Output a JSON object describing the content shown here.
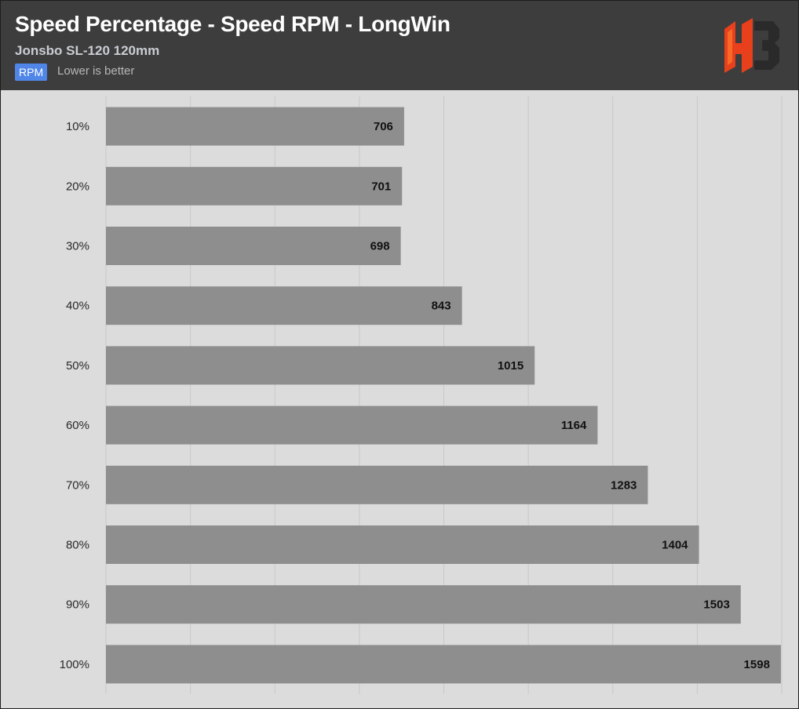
{
  "header": {
    "title": "Speed Percentage - Speed RPM - LongWin",
    "subtitle": "Jonsbo SL-120 120mm",
    "unit_badge": "RPM",
    "note": "Lower is better",
    "logo_icon": "hb-logo-icon"
  },
  "colors": {
    "header_bg": "#3d3d3d",
    "plot_bg": "#dcdcdc",
    "bar": "#8e8e8e",
    "badge": "#4f86e8",
    "grid": "#c8c8c8",
    "logo": "#e8401c"
  },
  "chart_data": {
    "type": "bar",
    "orientation": "horizontal",
    "categories": [
      "10%",
      "20%",
      "30%",
      "40%",
      "50%",
      "60%",
      "70%",
      "80%",
      "90%",
      "100%"
    ],
    "series": [
      {
        "values": [
          706,
          701,
          698,
          843,
          1015,
          1164,
          1283,
          1404,
          1503,
          1598
        ]
      }
    ],
    "xlim": [
      0,
      1600
    ],
    "grid": true,
    "value_labels": true,
    "legend": "none"
  }
}
